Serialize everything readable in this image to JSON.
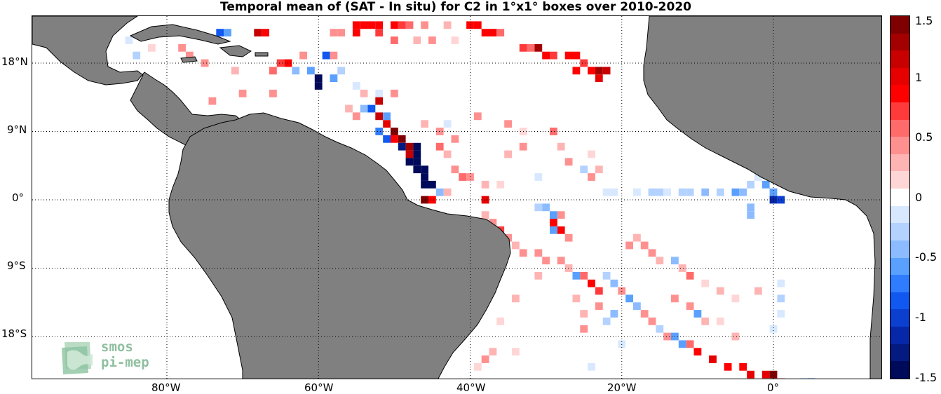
{
  "title": "Temporal mean of (SAT - In situ) for C2 in 1°x1° boxes over 2010-2020",
  "axes": {
    "lon_ticks": [
      "80°W",
      "60°W",
      "40°W",
      "20°W",
      "0°"
    ],
    "lat_ticks": [
      "18°N",
      "9°N",
      "0°",
      "9°S",
      "18°S"
    ],
    "lon_range": [
      -98,
      14
    ],
    "lat_range": [
      -24,
      24
    ],
    "grid": "dotted"
  },
  "colorbar": {
    "ticks": [
      "1.5",
      "1",
      "0.5",
      "0",
      "-0.5",
      "-1",
      "-1.5"
    ],
    "range": [
      -1.5,
      1.5
    ],
    "colors_top_to_bottom": [
      "#7f0000",
      "#a30000",
      "#c80000",
      "#e60000",
      "#ff0000",
      "#ff3a3a",
      "#ff6a6a",
      "#ff9090",
      "#ffb4b4",
      "#ffd6d6",
      "#ffffff",
      "#d8e8ff",
      "#b4d2ff",
      "#8cbcff",
      "#5aa0ff",
      "#2f7cff",
      "#1058f0",
      "#0a3fd0",
      "#0628a8",
      "#031a80",
      "#000a5a"
    ]
  },
  "land_color": "#808080",
  "logo": {
    "line1": "smos",
    "line2": "pi-mep"
  },
  "chart_data": {
    "type": "heatmap",
    "title": "Temporal mean of (SAT - In situ) for C2 in 1°x1° boxes over 2010-2020",
    "xlabel": "",
    "ylabel": "",
    "colorbar_range": [
      -1.5,
      1.5
    ],
    "cells": [
      {
        "lon": -55,
        "lat": 23,
        "v": 0.9
      },
      {
        "lon": -54,
        "lat": 23,
        "v": 0.9
      },
      {
        "lon": -53,
        "lat": 23,
        "v": 0.8
      },
      {
        "lon": -52,
        "lat": 23,
        "v": 0.9
      },
      {
        "lon": -50,
        "lat": 23,
        "v": 0.8
      },
      {
        "lon": -49,
        "lat": 23,
        "v": 0.7
      },
      {
        "lon": -48,
        "lat": 23,
        "v": 0.6
      },
      {
        "lon": -46,
        "lat": 23,
        "v": 0.4
      },
      {
        "lon": -43,
        "lat": 23,
        "v": 0.3
      },
      {
        "lon": -40,
        "lat": 23,
        "v": 0.9
      },
      {
        "lon": -39,
        "lat": 23,
        "v": 0.9
      },
      {
        "lon": -38,
        "lat": 22,
        "v": 0.8
      },
      {
        "lon": -37,
        "lat": 22,
        "v": 0.9
      },
      {
        "lon": -36,
        "lat": 22,
        "v": 0.6
      },
      {
        "lon": -67,
        "lat": 22,
        "v": 0.9
      },
      {
        "lon": -68,
        "lat": 22,
        "v": 1.2
      },
      {
        "lon": -73,
        "lat": 22,
        "v": -0.8
      },
      {
        "lon": -72,
        "lat": 22,
        "v": -0.6
      },
      {
        "lon": -58,
        "lat": 22,
        "v": 0.5
      },
      {
        "lon": -57,
        "lat": 22,
        "v": 0.4
      },
      {
        "lon": -55,
        "lat": 22,
        "v": 0.9
      },
      {
        "lon": -52,
        "lat": 22,
        "v": 0.7
      },
      {
        "lon": -50,
        "lat": 21,
        "v": 0.6
      },
      {
        "lon": -47,
        "lat": 21,
        "v": 0.3
      },
      {
        "lon": -45,
        "lat": 21,
        "v": 0.4
      },
      {
        "lon": -42,
        "lat": 21,
        "v": 0.2
      },
      {
        "lon": -33,
        "lat": 20,
        "v": 0.7
      },
      {
        "lon": -32,
        "lat": 20,
        "v": 0.6
      },
      {
        "lon": -31,
        "lat": 20,
        "v": 1.3
      },
      {
        "lon": -30,
        "lat": 19,
        "v": 0.9
      },
      {
        "lon": -29,
        "lat": 19,
        "v": 0.7
      },
      {
        "lon": -27,
        "lat": 19,
        "v": 0.8
      },
      {
        "lon": -26,
        "lat": 19,
        "v": 0.9
      },
      {
        "lon": -25,
        "lat": 18,
        "v": 0.7
      },
      {
        "lon": -24,
        "lat": 17,
        "v": 0.8
      },
      {
        "lon": -23,
        "lat": 17,
        "v": 1.3
      },
      {
        "lon": -22,
        "lat": 17,
        "v": 1.1
      },
      {
        "lon": -23,
        "lat": 16,
        "v": 1.0
      },
      {
        "lon": -26,
        "lat": 17,
        "v": 0.9
      },
      {
        "lon": -85,
        "lat": 21,
        "v": -0.2
      },
      {
        "lon": -84,
        "lat": 19,
        "v": -0.3
      },
      {
        "lon": -82,
        "lat": 20,
        "v": 0.2
      },
      {
        "lon": -78,
        "lat": 20,
        "v": 0.5
      },
      {
        "lon": -77,
        "lat": 19,
        "v": 0.4
      },
      {
        "lon": -75,
        "lat": 18,
        "v": 0.5
      },
      {
        "lon": -71,
        "lat": 17,
        "v": 0.3
      },
      {
        "lon": -66,
        "lat": 17,
        "v": 0.6
      },
      {
        "lon": -65,
        "lat": 18,
        "v": 0.7
      },
      {
        "lon": -64,
        "lat": 18,
        "v": 0.8
      },
      {
        "lon": -63,
        "lat": 17,
        "v": -0.4
      },
      {
        "lon": -62,
        "lat": 19,
        "v": 0.5
      },
      {
        "lon": -61,
        "lat": 17,
        "v": -0.6
      },
      {
        "lon": -60,
        "lat": 16,
        "v": -1.5
      },
      {
        "lon": -60,
        "lat": 15,
        "v": -1.5
      },
      {
        "lon": -58,
        "lat": 16,
        "v": -0.5
      },
      {
        "lon": -57,
        "lat": 17,
        "v": -0.3
      },
      {
        "lon": -59,
        "lat": 19,
        "v": -0.8
      },
      {
        "lon": -58,
        "lat": 19,
        "v": 0.5
      },
      {
        "lon": -55,
        "lat": 15,
        "v": -0.2
      },
      {
        "lon": -54,
        "lat": 14,
        "v": 0.3
      },
      {
        "lon": -52,
        "lat": 14,
        "v": -0.2
      },
      {
        "lon": -50,
        "lat": 14,
        "v": 0.4
      },
      {
        "lon": -79,
        "lat": 12,
        "v": 0.8
      },
      {
        "lon": -78,
        "lat": 11,
        "v": 1.0
      },
      {
        "lon": -80,
        "lat": 10,
        "v": 0.6
      },
      {
        "lon": -74,
        "lat": 13,
        "v": 0.4
      },
      {
        "lon": -70,
        "lat": 14,
        "v": 0.5
      },
      {
        "lon": -66,
        "lat": 14,
        "v": 0.4
      },
      {
        "lon": -56,
        "lat": 12,
        "v": 0.3
      },
      {
        "lon": -55,
        "lat": 11,
        "v": 0.5
      },
      {
        "lon": -54,
        "lat": 12,
        "v": -0.4
      },
      {
        "lon": -53,
        "lat": 12,
        "v": -0.8
      },
      {
        "lon": -52,
        "lat": 13,
        "v": 1.1
      },
      {
        "lon": -52,
        "lat": 11,
        "v": 1.2
      },
      {
        "lon": -51,
        "lat": 11,
        "v": -0.5
      },
      {
        "lon": -51,
        "lat": 10,
        "v": 1.0
      },
      {
        "lon": -50,
        "lat": 9,
        "v": 1.4
      },
      {
        "lon": -49,
        "lat": 8,
        "v": 1.5
      },
      {
        "lon": -51,
        "lat": 8,
        "v": -0.9
      },
      {
        "lon": -52,
        "lat": 9,
        "v": -0.7
      },
      {
        "lon": -50,
        "lat": 8,
        "v": 0.9
      },
      {
        "lon": -49,
        "lat": 7,
        "v": -1.3
      },
      {
        "lon": -48,
        "lat": 7,
        "v": 1.3
      },
      {
        "lon": -47,
        "lat": 7,
        "v": -1.5
      },
      {
        "lon": -48,
        "lat": 6,
        "v": 1.2
      },
      {
        "lon": -47,
        "lat": 6,
        "v": -1.4
      },
      {
        "lon": -48,
        "lat": 5,
        "v": -1.5
      },
      {
        "lon": -47,
        "lat": 5,
        "v": -1.5
      },
      {
        "lon": -46,
        "lat": 4,
        "v": -1.5
      },
      {
        "lon": -47,
        "lat": 4,
        "v": -1.4
      },
      {
        "lon": -46,
        "lat": 3,
        "v": -1.5
      },
      {
        "lon": -46,
        "lat": 2,
        "v": -1.5
      },
      {
        "lon": -45,
        "lat": 2,
        "v": -1.5
      },
      {
        "lon": -44,
        "lat": 1,
        "v": -0.4
      },
      {
        "lon": -46,
        "lat": 0,
        "v": 1.5
      },
      {
        "lon": -45,
        "lat": 0,
        "v": 0.8
      },
      {
        "lon": -43,
        "lat": 1,
        "v": 0.3
      },
      {
        "lon": -41,
        "lat": 3,
        "v": 0.6
      },
      {
        "lon": -42,
        "lat": 4,
        "v": 0.4
      },
      {
        "lon": -40,
        "lat": 3,
        "v": 0.5
      },
      {
        "lon": -38,
        "lat": 2,
        "v": 0.3
      },
      {
        "lon": -36,
        "lat": 2,
        "v": 0.2
      },
      {
        "lon": -38,
        "lat": 0,
        "v": 1.0
      },
      {
        "lon": -44,
        "lat": 7,
        "v": 0.6
      },
      {
        "lon": -43,
        "lat": 6,
        "v": 0.3
      },
      {
        "lon": -42,
        "lat": 8,
        "v": 0.5
      },
      {
        "lon": -44,
        "lat": 9,
        "v": 0.4
      },
      {
        "lon": -46,
        "lat": 10,
        "v": 0.3
      },
      {
        "lon": -43,
        "lat": 10,
        "v": -0.2
      },
      {
        "lon": -39,
        "lat": 11,
        "v": 0.4
      },
      {
        "lon": -35,
        "lat": 10,
        "v": 0.4
      },
      {
        "lon": -33,
        "lat": 9,
        "v": 0.2
      },
      {
        "lon": -35,
        "lat": 6,
        "v": 0.3
      },
      {
        "lon": -33,
        "lat": 7,
        "v": 0.4
      },
      {
        "lon": -31,
        "lat": 3,
        "v": -0.2
      },
      {
        "lon": -29,
        "lat": 9,
        "v": 0.6
      },
      {
        "lon": -28,
        "lat": 7,
        "v": 0.3
      },
      {
        "lon": -27,
        "lat": 5,
        "v": 0.4
      },
      {
        "lon": -25,
        "lat": 4,
        "v": -0.3
      },
      {
        "lon": -24,
        "lat": 3,
        "v": 0.5
      },
      {
        "lon": -23,
        "lat": 4,
        "v": 0.3
      },
      {
        "lon": -24,
        "lat": 6,
        "v": 0.2
      },
      {
        "lon": -22,
        "lat": 1,
        "v": -0.2
      },
      {
        "lon": -21,
        "lat": 1,
        "v": -0.2
      },
      {
        "lon": -18,
        "lat": 1,
        "v": -0.2
      },
      {
        "lon": -16,
        "lat": 1,
        "v": -0.3
      },
      {
        "lon": -15,
        "lat": 1,
        "v": -0.3
      },
      {
        "lon": -14,
        "lat": 1,
        "v": -0.2
      },
      {
        "lon": -12,
        "lat": 1,
        "v": -0.3
      },
      {
        "lon": -11,
        "lat": 1,
        "v": -0.3
      },
      {
        "lon": -9,
        "lat": 1,
        "v": -0.4
      },
      {
        "lon": -7,
        "lat": 1,
        "v": -0.3
      },
      {
        "lon": -5,
        "lat": 1,
        "v": -0.6
      },
      {
        "lon": -4,
        "lat": 1,
        "v": -0.4
      },
      {
        "lon": -3,
        "lat": 2,
        "v": -0.3
      },
      {
        "lon": -2,
        "lat": 3,
        "v": -0.2
      },
      {
        "lon": -2,
        "lat": 4,
        "v": -0.4
      },
      {
        "lon": -1,
        "lat": 4,
        "v": -1.1
      },
      {
        "lon": 0,
        "lat": 4,
        "v": -1.0
      },
      {
        "lon": 0,
        "lat": 3,
        "v": -0.8
      },
      {
        "lon": -1,
        "lat": 2,
        "v": -0.5
      },
      {
        "lon": 0,
        "lat": 1,
        "v": -0.6
      },
      {
        "lon": 0,
        "lat": 0,
        "v": -1.2
      },
      {
        "lon": 1,
        "lat": 0,
        "v": -1.0
      },
      {
        "lon": -3,
        "lat": -1,
        "v": -0.4
      },
      {
        "lon": -3,
        "lat": -2,
        "v": -0.4
      },
      {
        "lon": -31,
        "lat": -1,
        "v": -0.3
      },
      {
        "lon": -30,
        "lat": -1,
        "v": -0.4
      },
      {
        "lon": -29,
        "lat": -2,
        "v": -0.5
      },
      {
        "lon": -28,
        "lat": -2,
        "v": 0.4
      },
      {
        "lon": -29,
        "lat": -3,
        "v": 0.9
      },
      {
        "lon": -28,
        "lat": -4,
        "v": 0.8
      },
      {
        "lon": -29,
        "lat": -4,
        "v": -0.6
      },
      {
        "lon": -27,
        "lat": -5,
        "v": 0.5
      },
      {
        "lon": -38,
        "lat": -2,
        "v": 0.3
      },
      {
        "lon": -37,
        "lat": -3,
        "v": 0.4
      },
      {
        "lon": -36,
        "lat": -4,
        "v": 0.7
      },
      {
        "lon": -35,
        "lat": -5,
        "v": 0.5
      },
      {
        "lon": -34,
        "lat": -6,
        "v": 0.3
      },
      {
        "lon": -33,
        "lat": -7,
        "v": 0.4
      },
      {
        "lon": -31,
        "lat": -7,
        "v": 0.5
      },
      {
        "lon": -30,
        "lat": -8,
        "v": 0.4
      },
      {
        "lon": -28,
        "lat": -8,
        "v": 0.5
      },
      {
        "lon": -27,
        "lat": -9,
        "v": 0.3
      },
      {
        "lon": -26,
        "lat": -10,
        "v": -0.5
      },
      {
        "lon": -25,
        "lat": -10,
        "v": 0.6
      },
      {
        "lon": -24,
        "lat": -11,
        "v": 0.8
      },
      {
        "lon": -23,
        "lat": -12,
        "v": 0.7
      },
      {
        "lon": -22,
        "lat": -10,
        "v": -0.3
      },
      {
        "lon": -21,
        "lat": -11,
        "v": -0.4
      },
      {
        "lon": -20,
        "lat": -12,
        "v": 0.5
      },
      {
        "lon": -19,
        "lat": -13,
        "v": -0.5
      },
      {
        "lon": -18,
        "lat": -14,
        "v": -0.4
      },
      {
        "lon": -17,
        "lat": -15,
        "v": 0.5
      },
      {
        "lon": -16,
        "lat": -16,
        "v": 0.4
      },
      {
        "lon": -15,
        "lat": -17,
        "v": -0.3
      },
      {
        "lon": -14,
        "lat": -18,
        "v": 0.5
      },
      {
        "lon": -13,
        "lat": -18,
        "v": -0.6
      },
      {
        "lon": -12,
        "lat": -19,
        "v": -0.5
      },
      {
        "lon": -11,
        "lat": -19,
        "v": 0.6
      },
      {
        "lon": -10,
        "lat": -20,
        "v": 0.9
      },
      {
        "lon": -8,
        "lat": -21,
        "v": 1.0
      },
      {
        "lon": -6,
        "lat": -22,
        "v": 0.8
      },
      {
        "lon": -4,
        "lat": -22,
        "v": 0.9
      },
      {
        "lon": -3,
        "lat": -23,
        "v": 1.0
      },
      {
        "lon": -1,
        "lat": -23,
        "v": 1.0
      },
      {
        "lon": 0,
        "lat": -23,
        "v": 1.4
      },
      {
        "lon": 1,
        "lat": -24,
        "v": 0.4
      },
      {
        "lon": 4,
        "lat": -24,
        "v": -0.3
      },
      {
        "lon": 5,
        "lat": -24,
        "v": -0.5
      },
      {
        "lon": -19,
        "lat": -6,
        "v": 0.4
      },
      {
        "lon": -18,
        "lat": -5,
        "v": 0.3
      },
      {
        "lon": -17,
        "lat": -6,
        "v": 0.5
      },
      {
        "lon": -16,
        "lat": -7,
        "v": 0.4
      },
      {
        "lon": -15,
        "lat": -8,
        "v": 0.3
      },
      {
        "lon": -13,
        "lat": -8,
        "v": -0.4
      },
      {
        "lon": -12,
        "lat": -9,
        "v": 0.3
      },
      {
        "lon": -11,
        "lat": -10,
        "v": 0.6
      },
      {
        "lon": -9,
        "lat": -11,
        "v": 0.2
      },
      {
        "lon": -7,
        "lat": -12,
        "v": 0.3
      },
      {
        "lon": -5,
        "lat": -13,
        "v": 0.2
      },
      {
        "lon": -2,
        "lat": -12,
        "v": 0.3
      },
      {
        "lon": 1,
        "lat": -11,
        "v": -0.2
      },
      {
        "lon": 1,
        "lat": -13,
        "v": -0.3
      },
      {
        "lon": 1,
        "lat": -15,
        "v": -0.2
      },
      {
        "lon": 0,
        "lat": -17,
        "v": -0.2
      },
      {
        "lon": -13,
        "lat": -13,
        "v": 0.5
      },
      {
        "lon": -11,
        "lat": -14,
        "v": 0.4
      },
      {
        "lon": -10,
        "lat": -15,
        "v": -0.5
      },
      {
        "lon": -9,
        "lat": -16,
        "v": 0.3
      },
      {
        "lon": -7,
        "lat": -16,
        "v": 0.2
      },
      {
        "lon": -5,
        "lat": -18,
        "v": 0.3
      },
      {
        "lon": -21,
        "lat": -15,
        "v": -0.4
      },
      {
        "lon": -22,
        "lat": -16,
        "v": -0.3
      },
      {
        "lon": -23,
        "lat": -14,
        "v": 0.4
      },
      {
        "lon": -25,
        "lat": -15,
        "v": 0.3
      },
      {
        "lon": -26,
        "lat": -13,
        "v": 0.3
      },
      {
        "lon": -25,
        "lat": -17,
        "v": 0.4
      },
      {
        "lon": -37,
        "lat": -20,
        "v": 0.3
      },
      {
        "lon": -38,
        "lat": -21,
        "v": 0.4
      },
      {
        "lon": -39,
        "lat": -22,
        "v": 0.2
      },
      {
        "lon": -40,
        "lat": -24,
        "v": -0.2
      },
      {
        "lon": -41,
        "lat": -25,
        "v": 0.7
      },
      {
        "lon": -34,
        "lat": -20,
        "v": 0.2
      },
      {
        "lon": -24,
        "lat": -22,
        "v": -0.2
      },
      {
        "lon": -20,
        "lat": -19,
        "v": -0.2
      },
      {
        "lon": -34,
        "lat": -13,
        "v": 0.3
      },
      {
        "lon": -36,
        "lat": -16,
        "v": 0.2
      },
      {
        "lon": -37,
        "lat": -8,
        "v": -0.2
      },
      {
        "lon": -31,
        "lat": -10,
        "v": 0.3
      }
    ]
  }
}
